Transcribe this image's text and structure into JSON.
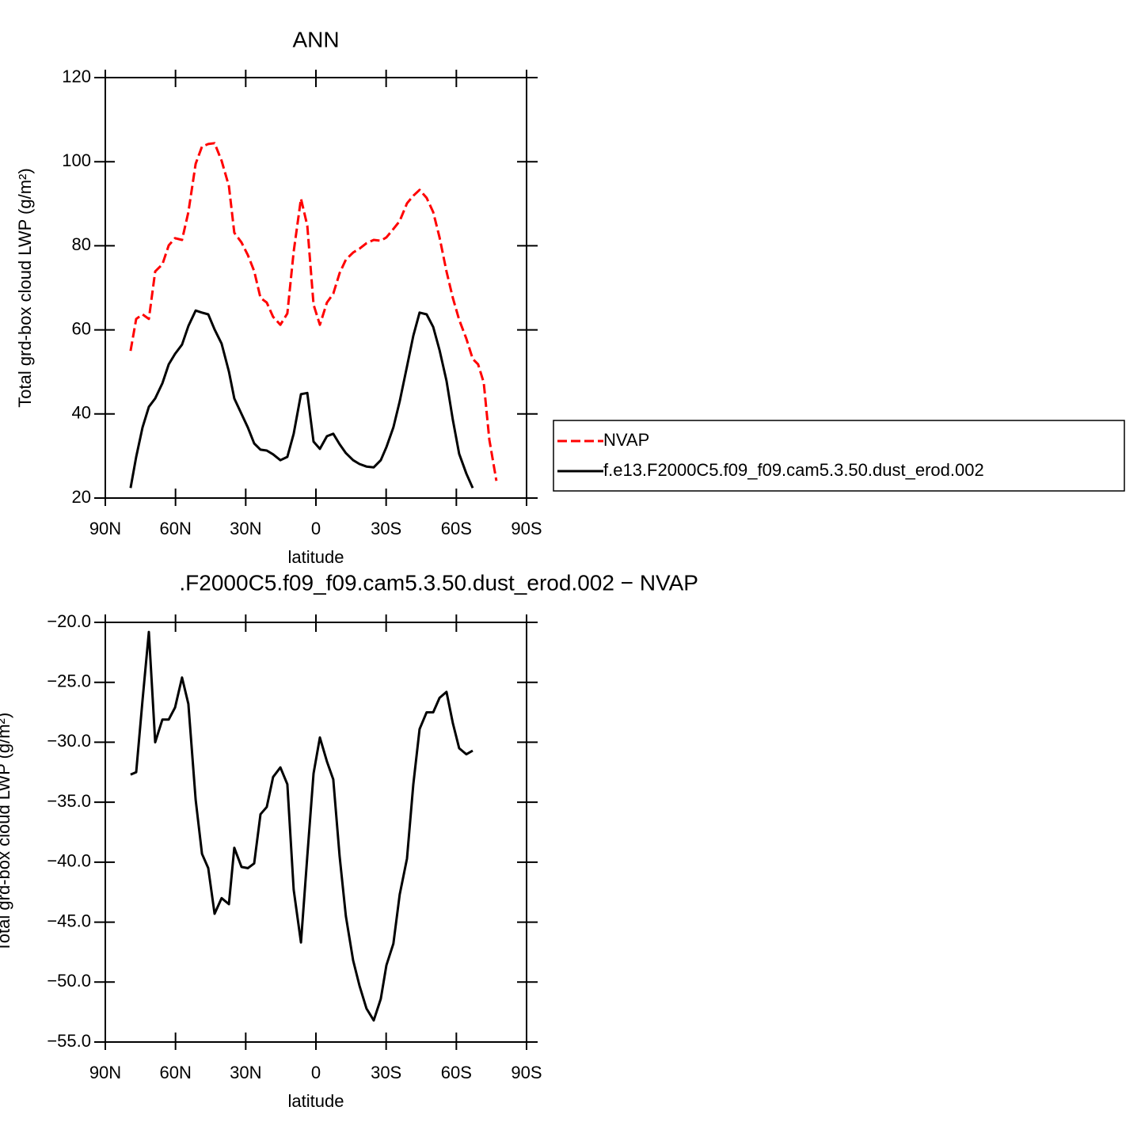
{
  "chart_data": [
    {
      "type": "line",
      "title": "ANN",
      "x_label": "latitude",
      "y_label": "Total grd-box cloud LWP (g/m²)",
      "x": [
        79.2,
        76.8,
        74.1,
        71.4,
        68.7,
        65.6,
        62.9,
        60.2,
        57.2,
        54.5,
        51.4,
        48.7,
        46.0,
        43.3,
        40.3,
        37.2,
        34.9,
        31.8,
        29.1,
        26.4,
        23.7,
        21.0,
        18.3,
        15.2,
        12.2,
        9.5,
        6.4,
        3.7,
        1.0,
        -1.7,
        -4.7,
        -7.4,
        -10.1,
        -12.8,
        -15.9,
        -18.6,
        -21.6,
        -24.7,
        -27.7,
        -30.1,
        -33.1,
        -35.8,
        -38.9,
        -41.6,
        -44.3,
        -47.3,
        -50.1,
        -52.8,
        -55.8,
        -58.5,
        -61.2,
        -64.3,
        -67.0,
        -69.3,
        -71.7,
        -74.1,
        -77.1
      ],
      "series": [
        {
          "name": "NVAP",
          "color": "#ff0000",
          "style": "dashed",
          "values": [
            55.0,
            62.6,
            63.7,
            62.6,
            73.9,
            75.6,
            80.1,
            81.8,
            81.4,
            88.0,
            99.5,
            103.6,
            104.2,
            104.4,
            100.2,
            94.2,
            83.1,
            80.8,
            77.8,
            74.0,
            67.6,
            66.5,
            63.1,
            61.2,
            63.9,
            78.6,
            91.2,
            84.8,
            66.0,
            61.2,
            66.5,
            68.6,
            73.5,
            76.7,
            78.4,
            79.3,
            80.6,
            81.4,
            81.2,
            82.0,
            84.0,
            85.9,
            90.1,
            91.9,
            93.3,
            91.4,
            88.0,
            82.0,
            73.9,
            67.6,
            62.4,
            57.9,
            53.1,
            51.8,
            47.5,
            33.9,
            24.1
          ]
        },
        {
          "name": "f.e13.F2000C5.f09_f09.cam5.3.50.dust_erod.002",
          "color": "#000000",
          "style": "solid",
          "values": [
            22.4,
            29.8,
            36.8,
            41.7,
            43.7,
            47.3,
            51.8,
            54.3,
            56.5,
            60.9,
            64.6,
            64.1,
            63.7,
            60.1,
            56.7,
            50.1,
            43.7,
            40.0,
            36.8,
            33.0,
            31.5,
            31.3,
            30.4,
            29.0,
            29.8,
            35.3,
            44.7,
            45.0,
            33.4,
            31.7,
            34.7,
            35.3,
            32.8,
            30.7,
            29.0,
            28.1,
            27.5,
            27.3,
            29.0,
            32.1,
            36.8,
            43.0,
            51.3,
            58.6,
            64.1,
            63.7,
            60.7,
            55.2,
            47.9,
            38.6,
            30.5,
            25.8,
            22.4,
            null,
            null,
            null,
            null
          ]
        }
      ],
      "xlim": [
        90,
        -90
      ],
      "xticks": [
        {
          "value": 90,
          "label": "90N"
        },
        {
          "value": 60,
          "label": "60N"
        },
        {
          "value": 30,
          "label": "30N"
        },
        0,
        {
          "value": -30,
          "label": "30S"
        },
        {
          "value": -60,
          "label": "60S"
        },
        {
          "value": -90,
          "label": "90S"
        }
      ],
      "ylim": [
        20,
        120
      ],
      "yticks": [
        20,
        40,
        60,
        80,
        100,
        120
      ],
      "legend": "right"
    },
    {
      "type": "line",
      "title": ".F2000C5.f09_f09.cam5.3.50.dust_erod.002 − NVAP",
      "x_label": "latitude",
      "y_label": "Total grd-box cloud LWP (g/m²)",
      "x": [
        79.2,
        76.8,
        74.1,
        71.4,
        68.7,
        65.6,
        62.9,
        60.2,
        57.2,
        54.5,
        51.4,
        48.7,
        46.0,
        43.3,
        40.3,
        37.2,
        34.9,
        31.8,
        29.1,
        26.4,
        23.7,
        21.0,
        18.3,
        15.2,
        12.2,
        9.5,
        6.4,
        3.7,
        1.0,
        -1.7,
        -4.7,
        -7.4,
        -10.1,
        -12.8,
        -15.9,
        -18.6,
        -21.6,
        -24.7,
        -27.7,
        -30.1,
        -33.1,
        -35.8,
        -38.9,
        -41.6,
        -44.3,
        -47.3,
        -50.1,
        -52.8,
        -55.8,
        -58.5,
        -61.2,
        -64.3,
        -67.0
      ],
      "series": [
        {
          "color": "#000000",
          "style": "solid",
          "values": [
            -32.7,
            -32.5,
            -26.5,
            -20.8,
            -30.0,
            -28.1,
            -28.1,
            -27.1,
            -24.6,
            -26.8,
            -34.8,
            -39.3,
            -40.5,
            -44.3,
            -43.0,
            -43.5,
            -38.8,
            -40.4,
            -40.5,
            -40.1,
            -36.0,
            -35.4,
            -32.9,
            -32.1,
            -33.5,
            -42.3,
            -46.7,
            -39.5,
            -32.6,
            -29.6,
            -31.6,
            -33.1,
            -39.5,
            -44.5,
            -48.2,
            -50.3,
            -52.2,
            -53.2,
            -51.4,
            -48.6,
            -46.8,
            -42.7,
            -39.7,
            -33.5,
            -28.9,
            -27.5,
            -27.5,
            -26.3,
            -25.8,
            -28.4,
            -30.5,
            -31.0,
            -30.7
          ]
        }
      ],
      "xlim": [
        90,
        -90
      ],
      "xticks": [
        {
          "value": 90,
          "label": "90N"
        },
        {
          "value": 60,
          "label": "60N"
        },
        {
          "value": 30,
          "label": "30N"
        },
        0,
        {
          "value": -30,
          "label": "30S"
        },
        {
          "value": -60,
          "label": "60S"
        },
        {
          "value": -90,
          "label": "90S"
        }
      ],
      "ylim": [
        -55,
        -20
      ],
      "yticks": [
        {
          "value": -55,
          "label": "−55.0"
        },
        {
          "value": -50,
          "label": "−50.0"
        },
        {
          "value": -45,
          "label": "−45.0"
        },
        {
          "value": -40,
          "label": "−40.0"
        },
        {
          "value": -35,
          "label": "−35.0"
        },
        {
          "value": -30,
          "label": "−30.0"
        },
        {
          "value": -25,
          "label": "−25.0"
        },
        {
          "value": -20,
          "label": "−20.0"
        }
      ]
    }
  ]
}
